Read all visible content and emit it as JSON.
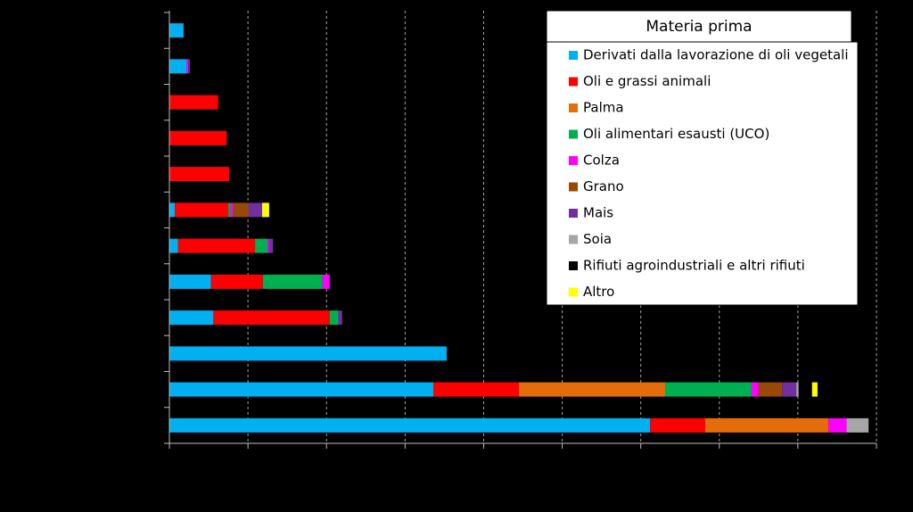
{
  "chart_data": {
    "type": "bar",
    "orientation": "horizontal",
    "stacked": true,
    "categories": [
      null,
      null,
      null,
      null,
      null,
      null,
      null,
      null,
      null,
      null,
      null,
      null
    ],
    "xlim": [
      0,
      9
    ],
    "xticks": [
      0,
      1,
      2,
      3,
      4,
      5,
      6,
      7,
      8,
      9
    ],
    "grid": true,
    "legend_title": "Materia prima",
    "legend": "upper right",
    "series": [
      {
        "name": "Derivati dalla lavorazione di oli vegetali",
        "color": "#00b0f0",
        "values": [
          0.18,
          0.22,
          null,
          null,
          null,
          0.07,
          0.11,
          0.53,
          0.56,
          3.53,
          3.36,
          6.12
        ]
      },
      {
        "name": "Oli e grassi animali",
        "color": "#ff0000",
        "values": [
          null,
          null,
          0.62,
          0.73,
          0.76,
          0.68,
          0.98,
          0.66,
          1.48,
          null,
          1.09,
          0.7
        ]
      },
      {
        "name": "Palma",
        "color": "#e46c0a",
        "values": [
          null,
          null,
          null,
          null,
          null,
          null,
          null,
          null,
          null,
          null,
          1.86,
          1.57
        ]
      },
      {
        "name": "Oli alimentari esausti (UCO)",
        "color": "#00b050",
        "values": [
          null,
          null,
          null,
          null,
          null,
          0.03,
          0.16,
          0.76,
          0.11,
          null,
          1.1,
          null
        ]
      },
      {
        "name": "Colza",
        "color": "#ff00ff",
        "values": [
          null,
          0.02,
          null,
          null,
          null,
          0.03,
          0.02,
          0.09,
          null,
          null,
          0.09,
          0.23
        ]
      },
      {
        "name": "Grano",
        "color": "#984807",
        "values": [
          null,
          null,
          null,
          null,
          null,
          0.2,
          null,
          null,
          null,
          null,
          0.3,
          null
        ]
      },
      {
        "name": "Mais",
        "color": "#7030a0",
        "values": [
          null,
          0.02,
          null,
          null,
          null,
          0.17,
          0.05,
          null,
          0.05,
          null,
          0.18,
          null
        ]
      },
      {
        "name": "Soia",
        "color": "#a6a6a6",
        "values": [
          null,
          null,
          null,
          null,
          null,
          null,
          null,
          null,
          null,
          null,
          0.03,
          0.28
        ]
      },
      {
        "name": "Rifiuti agroindustriali e altri rifiuti",
        "color": "#000000",
        "values": [
          null,
          null,
          null,
          null,
          null,
          null,
          null,
          null,
          null,
          null,
          0.17,
          null
        ]
      },
      {
        "name": "Altro",
        "color": "#ffff00",
        "values": [
          null,
          null,
          null,
          null,
          null,
          0.09,
          null,
          null,
          null,
          null,
          0.07,
          null
        ]
      }
    ]
  }
}
